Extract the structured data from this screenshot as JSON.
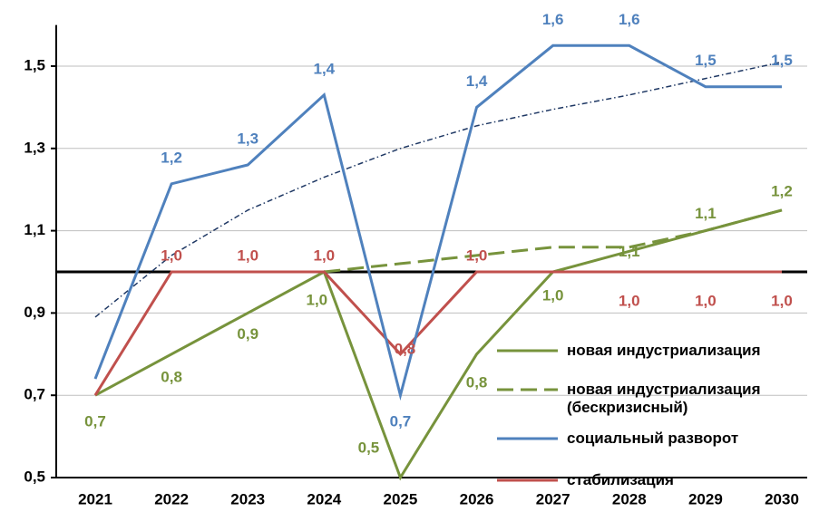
{
  "chart_data": {
    "type": "line",
    "categories": [
      "2021",
      "2022",
      "2023",
      "2024",
      "2025",
      "2026",
      "2027",
      "2028",
      "2029",
      "2030"
    ],
    "ylim": [
      0.5,
      1.6
    ],
    "yticks": [
      {
        "value": 0.5,
        "label": "0,5"
      },
      {
        "value": 0.7,
        "label": "0,7"
      },
      {
        "value": 0.9,
        "label": "0,9"
      },
      {
        "value": 1.1,
        "label": "1,1"
      },
      {
        "value": 1.3,
        "label": "1,3"
      },
      {
        "value": 1.5,
        "label": "1,5"
      }
    ],
    "grid": true,
    "hline": 1.0,
    "series": [
      {
        "name": "новая индустриализация",
        "color": "#77933c",
        "style": "solid",
        "values": [
          0.7,
          0.8,
          0.9,
          1.0,
          0.5,
          0.8,
          1.0,
          1.05,
          1.1,
          1.15
        ],
        "value_labels": [
          "0,7",
          "0,8",
          "0,9",
          "1,0",
          "0,5",
          "0,8",
          "1,0",
          null,
          "1,1",
          "1,2"
        ]
      },
      {
        "name": "новая индустриализация (бескризисный)",
        "color": "#77933c",
        "style": "dash",
        "values": [
          null,
          null,
          null,
          1.0,
          1.02,
          1.04,
          1.06,
          1.06,
          1.1,
          1.15
        ],
        "value_labels": [
          null,
          null,
          null,
          null,
          null,
          null,
          null,
          "1,1",
          null,
          null
        ]
      },
      {
        "name": "социальный разворот",
        "color": "#4f81bd",
        "style": "solid",
        "values": [
          0.74,
          1.214,
          1.26,
          1.43,
          0.7,
          1.4,
          1.55,
          1.55,
          1.45,
          1.45
        ],
        "value_labels": [
          null,
          "1,2",
          "1,3",
          "1,4",
          "0,7",
          "1,4",
          "1,6",
          "1,6",
          "1,5",
          "1,5"
        ]
      },
      {
        "name": "стабилизация",
        "color": "#c0504d",
        "style": "solid",
        "values": [
          0.7,
          1.0,
          1.0,
          1.0,
          0.8,
          1.0,
          1.0,
          1.0,
          1.0,
          1.0
        ],
        "value_labels": [
          null,
          "1,0",
          "1,0",
          "1,0",
          "0,8",
          "1,0",
          null,
          "1,0",
          "1,0",
          "1,0"
        ]
      },
      {
        "color": "#1f3864",
        "style": "dashdot",
        "legend": false,
        "values": [
          0.89,
          1.04,
          1.15,
          1.23,
          1.3,
          1.355,
          1.395,
          1.43,
          1.47,
          1.51
        ]
      }
    ]
  }
}
